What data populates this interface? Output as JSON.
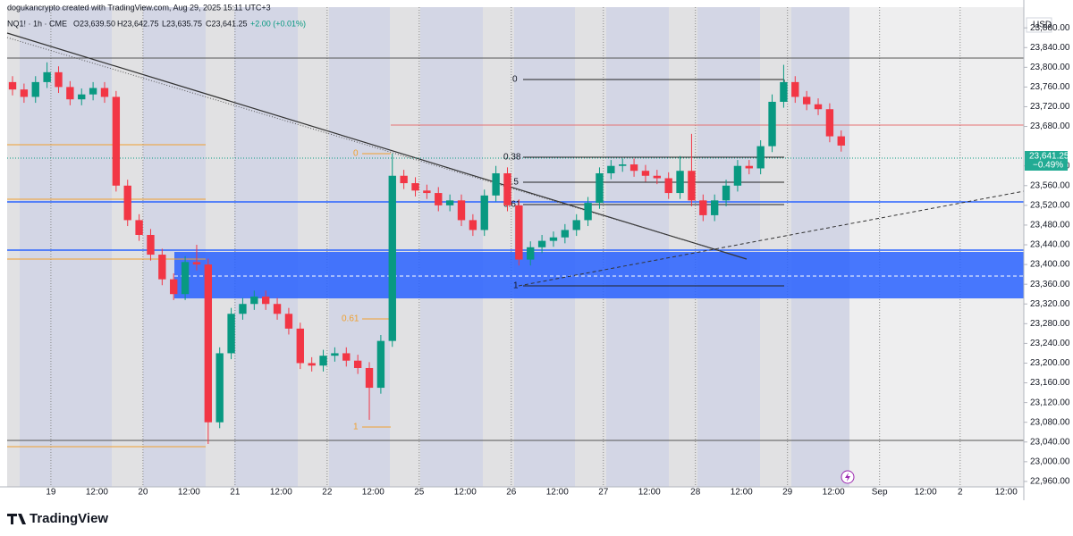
{
  "chart_data": {
    "type": "candlestick",
    "header": {
      "credit": "dogukancrypto created with TradingView.com, Aug 29, 2025 15:11 UTC+3",
      "symbol": "NQ1! · 1h · CME",
      "open": "O23,639.50",
      "high": "H23,642.75",
      "low": "L23,635.75",
      "close": "C23,641.25",
      "change": "+2.00 (+0.01%)"
    },
    "currency": "USD",
    "last_price_label": "23,641.25",
    "last_change_label": "−0.49%",
    "right_fib_labels": [
      "0",
      "0.38",
      "0.5",
      "0.61",
      "1"
    ],
    "left_fib_labels": [
      "0",
      "0.61",
      "1"
    ],
    "brand": "TradingView",
    "up_color": "#089981",
    "down_color": "#f23645",
    "grid": false,
    "xlim": [
      -11.4,
      253.6
    ],
    "xticks": [
      {
        "value": 0,
        "label": "19"
      },
      {
        "value": 12,
        "label": "12:00"
      },
      {
        "value": 24,
        "label": "20"
      },
      {
        "value": 36,
        "label": "12:00"
      },
      {
        "value": 48,
        "label": "21"
      },
      {
        "value": 60,
        "label": "12:00"
      },
      {
        "value": 72,
        "label": "22"
      },
      {
        "value": 84,
        "label": "12:00"
      },
      {
        "value": 96,
        "label": "25"
      },
      {
        "value": 108,
        "label": "12:00"
      },
      {
        "value": 120,
        "label": "26"
      },
      {
        "value": 132,
        "label": "12:00"
      },
      {
        "value": 144,
        "label": "27"
      },
      {
        "value": 156,
        "label": "12:00"
      },
      {
        "value": 168,
        "label": "28"
      },
      {
        "value": 180,
        "label": "12:00"
      },
      {
        "value": 192,
        "label": "29"
      },
      {
        "value": 204,
        "label": "12:00"
      },
      {
        "value": 216,
        "label": "Sep"
      },
      {
        "value": 228,
        "label": "12:00"
      },
      {
        "value": 237,
        "label": "2"
      },
      {
        "value": 249,
        "label": "12:00"
      }
    ],
    "ylim": [
      22949,
      23922
    ],
    "yticks": [
      {
        "value": 22960,
        "label": "22,960.00"
      },
      {
        "value": 23000,
        "label": "23,000.00"
      },
      {
        "value": 23040,
        "label": "23,040.00"
      },
      {
        "value": 23080,
        "label": "23,080.00"
      },
      {
        "value": 23120,
        "label": "23,120.00"
      },
      {
        "value": 23160,
        "label": "23,160.00"
      },
      {
        "value": 23200,
        "label": "23,200.00"
      },
      {
        "value": 23240,
        "label": "23,240.00"
      },
      {
        "value": 23280,
        "label": "23,280.00"
      },
      {
        "value": 23320,
        "label": "23,320.00"
      },
      {
        "value": 23360,
        "label": "23,360.00"
      },
      {
        "value": 23400,
        "label": "23,400.00"
      },
      {
        "value": 23440,
        "label": "23,440.00"
      },
      {
        "value": 23480,
        "label": "23,480.00"
      },
      {
        "value": 23520,
        "label": "23,520.00"
      },
      {
        "value": 23560,
        "label": "23,560.00"
      },
      {
        "value": 23600,
        "label": "23,600.00"
      },
      {
        "value": 23680,
        "label": "23,680.00"
      },
      {
        "value": 23720,
        "label": "23,720.00"
      },
      {
        "value": 23760,
        "label": "23,760.00"
      },
      {
        "value": 23800,
        "label": "23,800.00"
      },
      {
        "value": 23840,
        "label": "23,840.00"
      },
      {
        "value": 23880,
        "label": "23,880.00"
      }
    ],
    "x": [
      -10,
      -7,
      -4,
      -1,
      2,
      5,
      8,
      11,
      14,
      17,
      20,
      23,
      26,
      29,
      32,
      35,
      38,
      41,
      44,
      47,
      50,
      53,
      56,
      59,
      62,
      65,
      68,
      71,
      74,
      77,
      80,
      83,
      86,
      89,
      92,
      95,
      98,
      101,
      104,
      107,
      110,
      113,
      116,
      119,
      122,
      125,
      128,
      131,
      134,
      137,
      140,
      143,
      146,
      149,
      152,
      155,
      158,
      161,
      164,
      167,
      170,
      173,
      176,
      179,
      182,
      185,
      188,
      191,
      194,
      197,
      200,
      203,
      206
    ],
    "open": [
      23770,
      23755,
      23740,
      23770,
      23790,
      23760,
      23735,
      23745,
      23758,
      23740,
      23560,
      23490,
      23460,
      23420,
      23370,
      23340,
      23405,
      23400,
      23080,
      23220,
      23300,
      23320,
      23335,
      23320,
      23300,
      23270,
      23200,
      23195,
      23215,
      23220,
      23205,
      23190,
      23150,
      23245,
      23580,
      23565,
      23550,
      23545,
      23520,
      23530,
      23490,
      23470,
      23540,
      23585,
      23520,
      23410,
      23435,
      23448,
      23455,
      23470,
      23490,
      23525,
      23585,
      23600,
      23603,
      23590,
      23580,
      23575,
      23545,
      23590,
      23530,
      23500,
      23530,
      23560,
      23600,
      23595,
      23640,
      23730,
      23770,
      23740,
      23725,
      23715,
      23660
    ],
    "high": [
      23782,
      23767,
      23782,
      23810,
      23802,
      23772,
      23757,
      23770,
      23770,
      23752,
      23572,
      23502,
      23472,
      23432,
      23382,
      23417,
      23440,
      23412,
      23232,
      23312,
      23332,
      23347,
      23347,
      23332,
      23312,
      23282,
      23212,
      23227,
      23232,
      23232,
      23217,
      23202,
      23257,
      23625,
      23592,
      23577,
      23562,
      23557,
      23542,
      23542,
      23502,
      23552,
      23600,
      23597,
      23532,
      23447,
      23460,
      23467,
      23482,
      23502,
      23537,
      23597,
      23612,
      23615,
      23615,
      23602,
      23592,
      23587,
      23620,
      23665,
      23542,
      23542,
      23572,
      23612,
      23612,
      23652,
      23745,
      23805,
      23782,
      23752,
      23737,
      23727,
      23672
    ],
    "low": [
      23743,
      23728,
      23728,
      23758,
      23748,
      23723,
      23723,
      23733,
      23728,
      23548,
      23478,
      23448,
      23408,
      23358,
      23328,
      23328,
      23388,
      23036,
      23068,
      23208,
      23288,
      23308,
      23308,
      23288,
      23258,
      23188,
      23183,
      23183,
      23203,
      23193,
      23178,
      23085,
      23138,
      23233,
      23553,
      23538,
      23533,
      23508,
      23508,
      23478,
      23458,
      23458,
      23528,
      23508,
      23398,
      23398,
      23423,
      23436,
      23443,
      23458,
      23478,
      23513,
      23573,
      23588,
      23578,
      23568,
      23563,
      23533,
      23533,
      23518,
      23488,
      23488,
      23518,
      23548,
      23583,
      23583,
      23628,
      23718,
      23728,
      23713,
      23703,
      23648,
      23629
    ],
    "close": [
      23755,
      23740,
      23770,
      23790,
      23760,
      23735,
      23745,
      23758,
      23740,
      23560,
      23490,
      23460,
      23420,
      23370,
      23340,
      23405,
      23400,
      23080,
      23220,
      23300,
      23320,
      23335,
      23320,
      23300,
      23270,
      23200,
      23195,
      23215,
      23220,
      23205,
      23190,
      23150,
      23245,
      23580,
      23565,
      23550,
      23545,
      23520,
      23530,
      23490,
      23470,
      23540,
      23585,
      23520,
      23410,
      23435,
      23448,
      23455,
      23470,
      23490,
      23525,
      23585,
      23600,
      23603,
      23590,
      23580,
      23575,
      23545,
      23590,
      23530,
      23500,
      23530,
      23560,
      23600,
      23595,
      23640,
      23730,
      23770,
      23740,
      23725,
      23715,
      23660,
      23641.25
    ]
  }
}
